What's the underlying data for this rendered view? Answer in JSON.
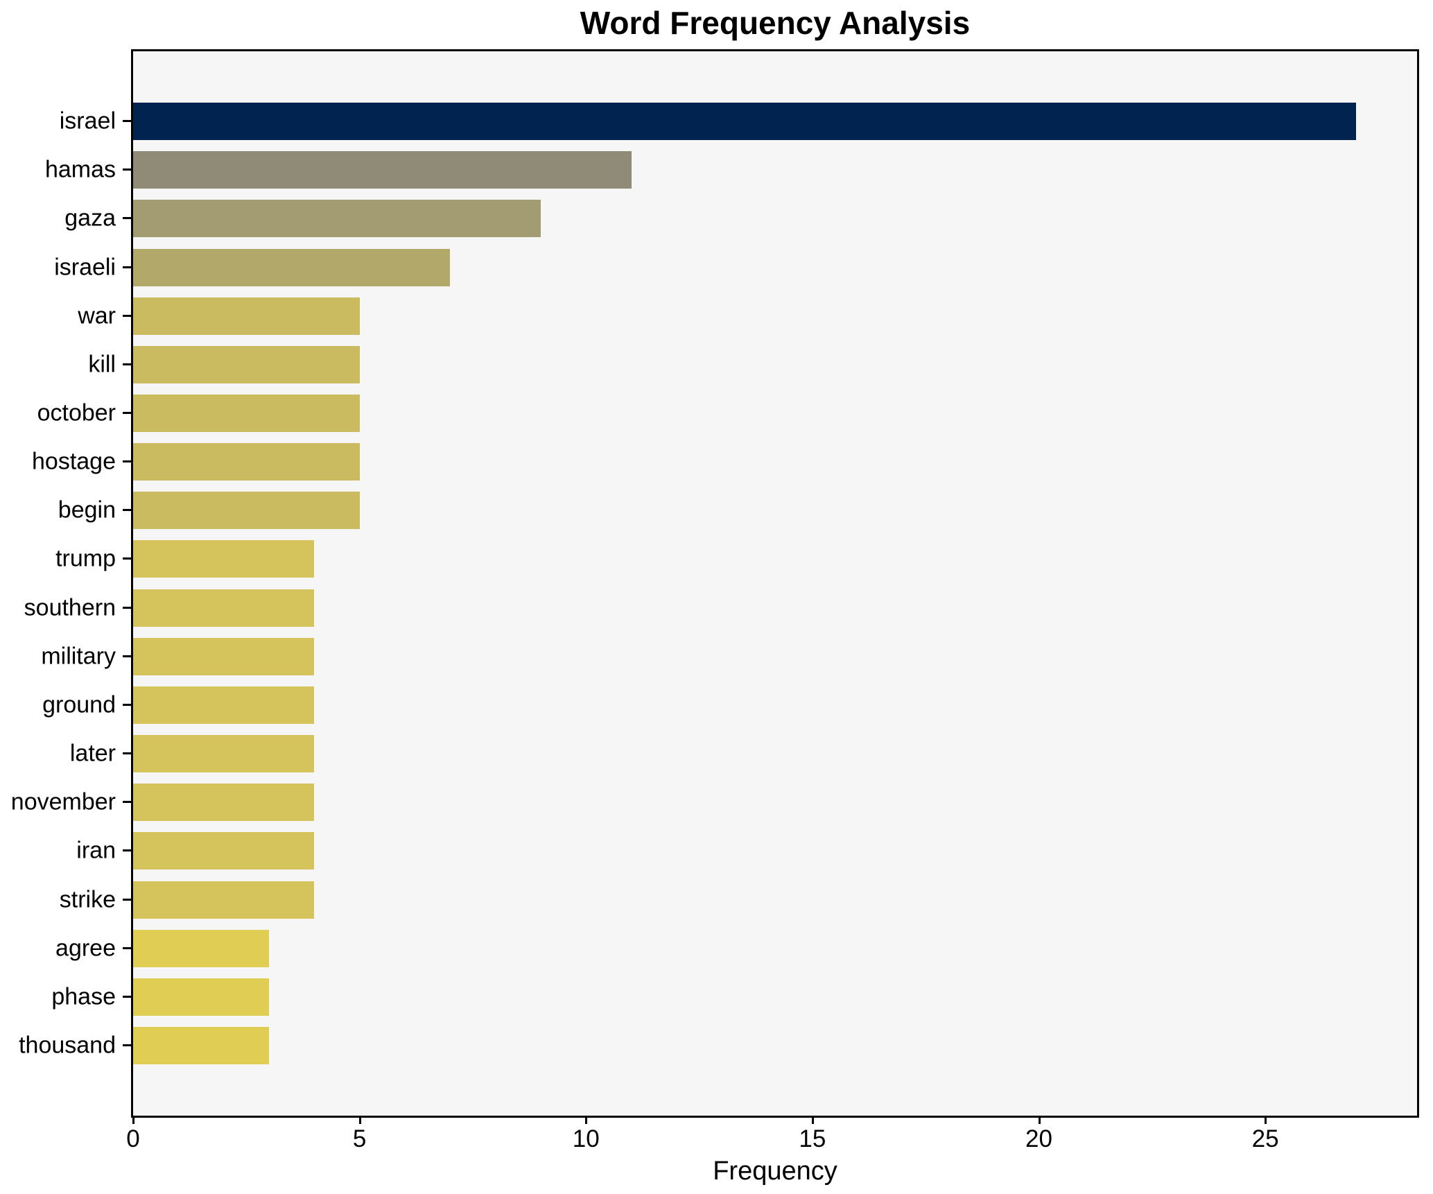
{
  "chart_data": {
    "type": "bar",
    "orientation": "horizontal",
    "title": "Word Frequency Analysis",
    "xlabel": "Frequency",
    "ylabel": "",
    "categories": [
      "israel",
      "hamas",
      "gaza",
      "israeli",
      "war",
      "kill",
      "october",
      "hostage",
      "begin",
      "trump",
      "southern",
      "military",
      "ground",
      "later",
      "november",
      "iran",
      "strike",
      "agree",
      "phase",
      "thousand"
    ],
    "values": [
      27,
      11,
      9,
      7,
      5,
      5,
      5,
      5,
      5,
      4,
      4,
      4,
      4,
      4,
      4,
      4,
      4,
      3,
      3,
      3
    ],
    "bar_colors": [
      "#00234f",
      "#8f8b77",
      "#a39b72",
      "#b1a869",
      "#cabb60",
      "#cabb60",
      "#cabb60",
      "#cabb60",
      "#cabb60",
      "#d4c45b",
      "#d4c45b",
      "#d4c45b",
      "#d4c45b",
      "#d4c45b",
      "#d4c45b",
      "#d4c45b",
      "#d4c45b",
      "#dfcd54",
      "#dfcd54",
      "#dfcd54"
    ],
    "xticks": [
      0,
      5,
      10,
      15,
      20,
      25
    ],
    "xlim": [
      0,
      28.35
    ],
    "grid": false,
    "legend_position": "none",
    "plot_background": "#f6f6f6",
    "colormap": "cividis-reversed-by-value",
    "spine_color": "#000000",
    "text_color": "#000000"
  }
}
